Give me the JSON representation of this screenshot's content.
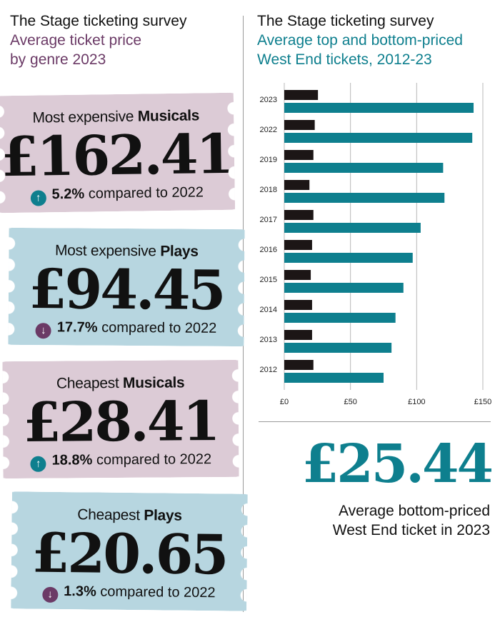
{
  "left_header": {
    "line1": "The Stage ticketing survey",
    "line2": "Average ticket price",
    "line3": "by genre 2023"
  },
  "right_header": {
    "line1": "The Stage ticketing survey",
    "line2": "Average top and bottom-priced",
    "line3": "West End tickets, 2012-23"
  },
  "tickets": [
    {
      "prefix": "Most expensive",
      "genre": "Musicals",
      "price": "£162.41",
      "direction": "up",
      "arrow": "↑",
      "pct": "5.2%",
      "suffix": "compared to 2022"
    },
    {
      "prefix": "Most expensive",
      "genre": "Plays",
      "price": "£94.45",
      "direction": "down",
      "arrow": "↓",
      "pct": "17.7%",
      "suffix": "compared to 2022"
    },
    {
      "prefix": "Cheapest",
      "genre": "Musicals",
      "price": "£28.41",
      "direction": "up",
      "arrow": "↑",
      "pct": "18.8%",
      "suffix": "compared to 2022"
    },
    {
      "prefix": "Cheapest",
      "genre": "Plays",
      "price": "£20.65",
      "direction": "down",
      "arrow": "↓",
      "pct": "1.3%",
      "suffix": "compared to 2022"
    }
  ],
  "colors": {
    "musical_ticket": "#dccbd6",
    "play_ticket": "#b7d6e0",
    "top_bar": "#0e7f8e",
    "bottom_bar": "#1c1616",
    "up_arrow": "#0e7f8e",
    "down_arrow": "#6b3a66"
  },
  "chart_data": {
    "type": "bar",
    "orientation": "horizontal",
    "categories": [
      "2023",
      "2022",
      "2019",
      "2018",
      "2017",
      "2016",
      "2015",
      "2014",
      "2013",
      "2012"
    ],
    "series": [
      {
        "key": "bottom",
        "values": [
          25.44,
          23,
          22,
          19,
          22,
          21,
          20,
          21,
          21,
          22
        ]
      },
      {
        "key": "top",
        "values": [
          143,
          142,
          120,
          121,
          103,
          97,
          90,
          84,
          81,
          75
        ]
      }
    ],
    "x_ticks": [
      "£0",
      "£50",
      "£100",
      "£150"
    ],
    "x_tick_values": [
      0,
      50,
      100,
      150
    ],
    "xlim": [
      0,
      150
    ],
    "grid": "vertical"
  },
  "highlight": {
    "value": "£25.44",
    "caption_line1": "Average bottom-priced",
    "caption_line2": "West End ticket in 2023"
  }
}
